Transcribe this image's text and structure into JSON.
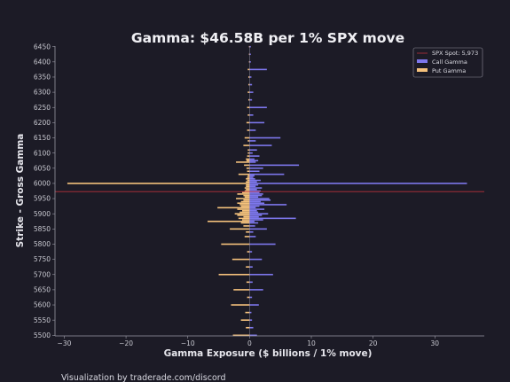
{
  "chart_data": {
    "type": "bar",
    "orientation": "horizontal",
    "title": "Gamma: $46.58B per 1% SPX move",
    "xlabel": "Gamma Exposure ($ billions / 1% move)",
    "ylabel": "Strike - Gross Gamma",
    "xlim": [
      -31.5,
      38
    ],
    "ylim": [
      5498,
      6452
    ],
    "x_ticks": [
      -30,
      -20,
      -10,
      0,
      10,
      20,
      30
    ],
    "y_ticks": [
      5500,
      5550,
      5600,
      5650,
      5700,
      5750,
      5800,
      5850,
      5900,
      5950,
      6000,
      6050,
      6100,
      6150,
      6200,
      6250,
      6300,
      6350,
      6400,
      6450
    ],
    "spot": 5973,
    "spot_label": "SPX Spot: 5,973",
    "legend_position": "upper-right",
    "colors": {
      "call": "#7d77ec",
      "put": "#f5c27c",
      "spot": "#b8303a",
      "zero_line": "#b8b8c4"
    },
    "series": [
      {
        "name": "Call Gamma",
        "strikes": [
          5500,
          5525,
          5550,
          5575,
          5600,
          5625,
          5650,
          5675,
          5700,
          5725,
          5750,
          5775,
          5800,
          5825,
          5840,
          5850,
          5860,
          5870,
          5875,
          5880,
          5885,
          5890,
          5895,
          5900,
          5905,
          5910,
          5915,
          5920,
          5925,
          5930,
          5935,
          5940,
          5945,
          5950,
          5955,
          5960,
          5965,
          5970,
          5975,
          5980,
          5985,
          5990,
          5995,
          6000,
          6005,
          6010,
          6015,
          6020,
          6025,
          6030,
          6040,
          6050,
          6060,
          6070,
          6075,
          6080,
          6090,
          6100,
          6110,
          6125,
          6140,
          6150,
          6175,
          6200,
          6225,
          6250,
          6275,
          6300,
          6325,
          6350,
          6375,
          6400,
          6425,
          6450
        ],
        "values": [
          1.2,
          0.6,
          0.4,
          0.3,
          1.5,
          0.4,
          2.2,
          0.5,
          3.8,
          0.5,
          2.0,
          0.4,
          4.2,
          1.0,
          0.6,
          2.8,
          0.9,
          1.4,
          0.8,
          2.2,
          7.5,
          1.5,
          2.0,
          3.0,
          1.4,
          1.2,
          2.4,
          1.0,
          1.6,
          6.0,
          2.4,
          1.8,
          3.4,
          3.2,
          1.4,
          2.0,
          2.2,
          1.6,
          1.8,
          1.2,
          2.0,
          1.0,
          1.4,
          35.2,
          1.2,
          1.8,
          0.9,
          0.6,
          0.8,
          5.6,
          1.6,
          2.2,
          8.0,
          1.0,
          1.4,
          0.8,
          1.6,
          0.5,
          1.2,
          3.6,
          1.0,
          5.0,
          1.0,
          2.4,
          0.6,
          2.8,
          0.4,
          0.6,
          0.4,
          0.3,
          2.8,
          0.2,
          0.2,
          0.2
        ]
      },
      {
        "name": "Put Gamma",
        "strikes": [
          5500,
          5525,
          5550,
          5575,
          5600,
          5625,
          5650,
          5675,
          5700,
          5725,
          5750,
          5775,
          5800,
          5825,
          5840,
          5850,
          5860,
          5870,
          5875,
          5880,
          5885,
          5890,
          5895,
          5900,
          5905,
          5910,
          5915,
          5920,
          5925,
          5930,
          5935,
          5940,
          5945,
          5950,
          5955,
          5960,
          5965,
          5970,
          5975,
          5980,
          5985,
          5990,
          5995,
          6000,
          6005,
          6010,
          6015,
          6020,
          6025,
          6030,
          6040,
          6050,
          6060,
          6070,
          6075,
          6080,
          6090,
          6100,
          6110,
          6125,
          6140,
          6150,
          6175,
          6200,
          6225,
          6250,
          6275,
          6300,
          6325,
          6350,
          6375,
          6400,
          6425,
          6450
        ],
        "values": [
          -2.7,
          -0.6,
          -1.4,
          -0.7,
          -3.0,
          -0.4,
          -2.6,
          -0.5,
          -5.0,
          -0.6,
          -2.8,
          -0.4,
          -4.6,
          -0.8,
          -0.6,
          -3.2,
          -1.0,
          -1.4,
          -6.8,
          -1.2,
          -1.8,
          -1.0,
          -2.0,
          -2.4,
          -1.6,
          -1.2,
          -2.0,
          -5.2,
          -1.4,
          -1.6,
          -2.0,
          -1.4,
          -1.0,
          -2.2,
          -0.8,
          -1.0,
          -2.0,
          -1.2,
          -0.8,
          -0.6,
          -0.8,
          -0.6,
          -0.6,
          -29.5,
          -0.6,
          -0.4,
          -0.6,
          -0.4,
          -0.3,
          -1.8,
          -0.4,
          -0.5,
          -0.9,
          -2.2,
          -0.5,
          -0.6,
          -0.4,
          -0.3,
          -0.3,
          -1.0,
          -0.3,
          -0.8,
          -0.4,
          -0.5,
          -0.3,
          -0.4,
          -0.2,
          -0.3,
          -0.2,
          -0.2,
          -0.3,
          -0.1,
          -0.1,
          -0.1
        ]
      }
    ],
    "footer": "Visualization by traderade.com/discord"
  }
}
